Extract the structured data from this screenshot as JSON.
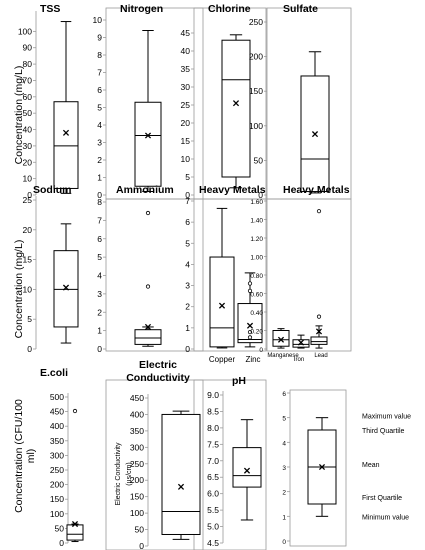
{
  "chart_data": [
    {
      "type": "boxplot",
      "title": "TSS",
      "ylabel": "Concentration (mg/L)",
      "ylim": [
        0,
        110
      ],
      "yticks": [
        "0",
        "10",
        "20",
        "30",
        "40",
        "50",
        "60",
        "70",
        "80",
        "90",
        "100"
      ],
      "series": [
        {
          "label": "",
          "min": 1,
          "q1": 4,
          "median": 30,
          "q3": 57,
          "max": 106,
          "mean": 38,
          "outliers": []
        }
      ]
    },
    {
      "type": "boxplot",
      "title": "Nitrogen",
      "ylabel": "",
      "ylim": [
        0,
        10
      ],
      "yticks": [
        "0",
        "1",
        "2",
        "3",
        "4",
        "5",
        "6",
        "7",
        "8",
        "9",
        "10"
      ],
      "series": [
        {
          "label": "",
          "min": 0.2,
          "q1": 0.5,
          "median": 3.4,
          "q3": 5.3,
          "max": 9.4,
          "mean": 3.4,
          "outliers": []
        }
      ]
    },
    {
      "type": "boxplot",
      "title": "Chlorine",
      "ylabel": "",
      "ylim": [
        0,
        45
      ],
      "yticks": [
        "0",
        "5",
        "10",
        "15",
        "20",
        "25",
        "30",
        "35",
        "40",
        "45"
      ],
      "series": [
        {
          "label": "",
          "min": 2,
          "q1": 5,
          "median": 32,
          "q3": 43,
          "max": 44.5,
          "mean": 25.5,
          "outliers": []
        }
      ]
    },
    {
      "type": "boxplot",
      "title": "Sulfate",
      "ylabel": "",
      "ylim": [
        0,
        250
      ],
      "yticks": [
        "0",
        "50",
        "100",
        "150",
        "200",
        "250"
      ],
      "series": [
        {
          "label": "",
          "min": 3,
          "q1": 5,
          "median": 52,
          "q3": 172,
          "max": 207,
          "mean": 88,
          "outliers": []
        }
      ]
    },
    {
      "type": "boxplot",
      "title": "Sodium",
      "ylabel": "Concentration (mg/L)",
      "ylim": [
        0,
        25
      ],
      "yticks": [
        "0",
        "5",
        "10",
        "15",
        "20",
        "25"
      ],
      "series": [
        {
          "label": "",
          "min": 1,
          "q1": 3.7,
          "median": 10,
          "q3": 16.5,
          "max": 21,
          "mean": 10.3,
          "outliers": []
        }
      ]
    },
    {
      "type": "boxplot",
      "title": "Ammonium",
      "ylabel": "",
      "ylim": [
        0,
        8
      ],
      "yticks": [
        "0",
        "1",
        "2",
        "3",
        "4",
        "5",
        "6",
        "7",
        "8"
      ],
      "series": [
        {
          "label": "",
          "min": 0.15,
          "q1": 0.25,
          "median": 0.6,
          "q3": 1.05,
          "max": 1.2,
          "mean": 1.2,
          "outliers": [
            3.4,
            7.4
          ]
        }
      ]
    },
    {
      "type": "boxplot",
      "title": "Heavy Metals",
      "ylabel": "",
      "ylim": [
        0,
        7
      ],
      "yticks": [
        "0",
        "1",
        "2",
        "3",
        "4",
        "5",
        "6",
        "7"
      ],
      "series": [
        {
          "label": "Copper",
          "min": 0.05,
          "q1": 0.1,
          "median": 1,
          "q3": 4.35,
          "max": 6.65,
          "mean": 2.05,
          "outliers": []
        },
        {
          "label": "Zinc",
          "min": 0.1,
          "q1": 0.3,
          "median": 0.45,
          "q3": 2.15,
          "max": 3.6,
          "mean": 1.1,
          "outliers": [
            0.55,
            0.8,
            2.75,
            3.1
          ]
        }
      ]
    },
    {
      "type": "boxplot",
      "title": "Heavy Metals",
      "ylabel": "",
      "ylim": [
        0,
        1.6
      ],
      "yticks": [
        "0",
        "0.20",
        "0.40",
        "0.60",
        "0.80",
        "1.00",
        "1.20",
        "1.40",
        "1.60"
      ],
      "series": [
        {
          "label": "Manganese",
          "min": 0.01,
          "q1": 0.03,
          "median": 0.1,
          "q3": 0.2,
          "max": 0.22,
          "mean": 0.1,
          "outliers": []
        },
        {
          "label": "Iron",
          "min": 0.01,
          "q1": 0.02,
          "median": 0.05,
          "q3": 0.1,
          "max": 0.15,
          "mean": 0.07,
          "outliers": []
        },
        {
          "label": "Lead",
          "min": 0.01,
          "q1": 0.05,
          "median": 0.08,
          "q3": 0.13,
          "max": 0.25,
          "mean": 0.19,
          "outliers": [
            0.35,
            1.49
          ]
        }
      ]
    },
    {
      "type": "boxplot",
      "title": "E.coli",
      "ylabel": "Concentration (CFU/100 ml)",
      "ylim": [
        0,
        500
      ],
      "yticks": [
        "0",
        "50",
        "100",
        "150",
        "200",
        "250",
        "300",
        "350",
        "400",
        "450",
        "500"
      ],
      "series": [
        {
          "label": "",
          "min": 5,
          "q1": 10,
          "median": 30,
          "q3": 62,
          "max": 65,
          "mean": 65,
          "outliers": [
            452
          ]
        }
      ]
    },
    {
      "type": "boxplot",
      "title": "Electric Conductivity",
      "ylabel": "Electric Conductivity (µs/cm)",
      "ylim": [
        0,
        450
      ],
      "yticks": [
        "0",
        "50",
        "100",
        "150",
        "200",
        "250",
        "300",
        "350",
        "400",
        "450"
      ],
      "series": [
        {
          "label": "",
          "min": 20,
          "q1": 35,
          "median": 105,
          "q3": 400,
          "max": 410,
          "mean": 180,
          "outliers": []
        }
      ]
    },
    {
      "type": "boxplot",
      "title": "pH",
      "ylabel": "",
      "ylim": [
        4.5,
        9.0
      ],
      "yticks": [
        "4.5",
        "5.0",
        "5.5",
        "6.0",
        "6.5",
        "7.0",
        "7.5",
        "8.0",
        "8.5",
        "9.0"
      ],
      "series": [
        {
          "label": "",
          "min": 5.2,
          "q1": 6.2,
          "median": 6.55,
          "q3": 7.4,
          "max": 8.25,
          "mean": 6.7,
          "outliers": []
        }
      ]
    },
    {
      "type": "boxplot",
      "title": "",
      "ylabel": "",
      "ylim": [
        0,
        6
      ],
      "yticks": [
        "0",
        "1",
        "2",
        "3",
        "4",
        "5",
        "6"
      ],
      "series": [
        {
          "label": "",
          "min": 1,
          "q1": 1.5,
          "median": 3,
          "q3": 4.5,
          "max": 5,
          "mean": 3,
          "outliers": []
        }
      ],
      "legend": {
        "maximum": "Maximum value",
        "third_quartile": "Third Quartile",
        "mean": "Mean",
        "first_quartile": "First Quartile",
        "minimum": "Minimum value"
      }
    }
  ]
}
